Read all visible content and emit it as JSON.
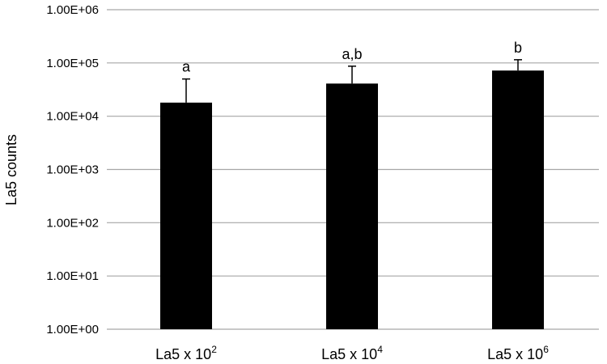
{
  "chart_data": {
    "type": "bar",
    "ylabel": "La5 counts",
    "yscale": "log",
    "ylim": [
      1,
      1000000
    ],
    "y_tick_labels": [
      "1.00E+00",
      "1.00E+01",
      "1.00E+02",
      "1.00E+03",
      "1.00E+04",
      "1.00E+05",
      "1.00E+06"
    ],
    "categories": [
      {
        "base": "La5 x 10",
        "exponent": "2"
      },
      {
        "base": "La5 x 10",
        "exponent": "4"
      },
      {
        "base": "La5 x 10",
        "exponent": "6"
      }
    ],
    "values": [
      18000,
      41000,
      72000
    ],
    "error_upper": [
      50000,
      87000,
      115000
    ],
    "significance_labels": [
      "a",
      "a,b",
      "b"
    ],
    "grid": true,
    "bar_color": "#000000",
    "grid_color": "#a6a6a6"
  }
}
